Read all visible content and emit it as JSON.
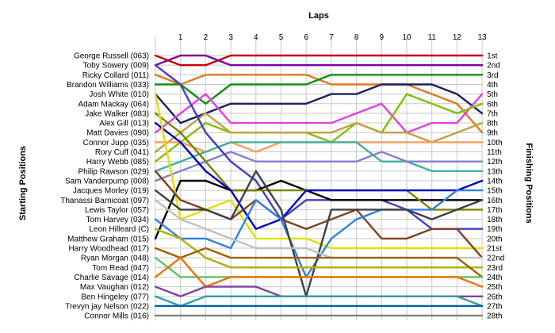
{
  "chart_data": {
    "type": "line",
    "x_title": "Laps",
    "y_left_title": "Starting Positions",
    "y_right_title": "Finishing Positions",
    "grid": true,
    "y_reversed": true,
    "laps": [
      "1",
      "2",
      "3",
      "4",
      "5",
      "6",
      "7",
      "8",
      "9",
      "10",
      "11",
      "12",
      "13"
    ],
    "starting_labels": [
      "George Russell (063)",
      "Toby Sowery (009)",
      "Ricky Collard (011)",
      "Brandon Williams (033)",
      "Josh White (010)",
      "Adam Mackay (064)",
      "Jake Walker (083)",
      "Alex Gill (013)",
      "Matt Davies (090)",
      "Connor Jupp (035)",
      "Rory Cuff (041)",
      "Harry Webb (085)",
      "Philip Rawson (029)",
      "Sam Vanderpump (008)",
      "Jacques Morley (019)",
      "Thanassi Barnicoat (097)",
      "Lewis Taylor (057)",
      "Tom Harvey (034)",
      "Leon Hilleard (C)",
      "Matthew Graham (015)",
      "Harry Woodhead (017)",
      "Ryan Morgan (048)",
      "Tom Read (047)",
      "Charlie Savage (014)",
      "Max Vaughan (012)",
      "Ben Hingeley (077)",
      "Trevyn jay Nelson (022)",
      "Connor Mills (016)"
    ],
    "finishing_labels": [
      "1st",
      "2nd",
      "3rd",
      "4th",
      "5th",
      "6th",
      "7th",
      "8th",
      "9th",
      "10th",
      "11th",
      "12th",
      "13th",
      "14th",
      "15th",
      "16th",
      "17th",
      "18th",
      "19th",
      "20th",
      "21st",
      "22nd",
      "23rd",
      "24th",
      "25th",
      "26th",
      "27th",
      "28th"
    ],
    "series": [
      {
        "color": "#c80000",
        "positions": [
          1,
          2,
          2,
          1,
          1,
          1,
          1,
          1,
          1,
          1,
          1,
          1,
          1,
          1
        ]
      },
      {
        "color": "#8000a0",
        "positions": [
          2,
          1,
          1,
          2,
          2,
          2,
          2,
          2,
          2,
          2,
          2,
          2,
          2,
          2
        ]
      },
      {
        "color": "#e07820",
        "positions": [
          3,
          4,
          3,
          3,
          3,
          3,
          3,
          4,
          4,
          4,
          4,
          5,
          6,
          9
        ]
      },
      {
        "color": "#109010",
        "positions": [
          4,
          4,
          6,
          4,
          4,
          4,
          4,
          3,
          3,
          3,
          3,
          3,
          3,
          3
        ]
      },
      {
        "color": "#1e1e60",
        "positions": [
          5,
          8,
          7,
          6,
          6,
          6,
          6,
          5,
          5,
          4,
          4,
          4,
          5,
          7
        ]
      },
      {
        "color": "#e040e0",
        "positions": [
          9,
          7,
          5,
          8,
          8,
          8,
          8,
          8,
          7,
          6,
          9,
          8,
          8,
          5
        ]
      },
      {
        "color": "#80c000",
        "positions": [
          12,
          10,
          8,
          9,
          9,
          9,
          9,
          10,
          8,
          9,
          5,
          6,
          7,
          6
        ]
      },
      {
        "color": "#c0a040",
        "positions": [
          11,
          9,
          7,
          9,
          9,
          9,
          9,
          9,
          8,
          9,
          9,
          10,
          9,
          8
        ]
      },
      {
        "color": "#f0a060",
        "positions": [
          10,
          10,
          11,
          10,
          11,
          10,
          10,
          10,
          10,
          10,
          10,
          10,
          10,
          10
        ]
      },
      {
        "color": "#40b0a0",
        "positions": [
          13,
          12,
          11,
          10,
          10,
          10,
          10,
          10,
          10,
          12,
          12,
          13,
          13,
          13
        ]
      },
      {
        "color": "#8080d0",
        "positions": [
          14,
          13,
          12,
          11,
          12,
          12,
          12,
          12,
          12,
          11,
          12,
          12,
          12,
          12
        ]
      },
      {
        "color": "#4040c0",
        "positions": [
          2,
          4,
          9,
          12,
          14,
          18,
          16,
          16,
          16,
          16,
          17,
          19,
          19,
          19
        ]
      },
      {
        "color": "#000000",
        "positions": [
          20,
          14,
          14,
          15,
          15,
          14,
          15,
          16,
          16,
          16,
          16,
          16,
          16,
          16
        ]
      },
      {
        "color": "#808000",
        "positions": [
          7,
          9,
          12,
          15,
          15,
          15,
          15,
          15,
          15,
          15,
          15,
          17,
          17,
          17
        ]
      },
      {
        "color": "#0000c0",
        "positions": [
          8,
          10,
          13,
          15,
          19,
          18,
          15,
          15,
          15,
          15,
          15,
          15,
          15,
          14
        ]
      },
      {
        "color": "#e0e000",
        "positions": [
          5,
          18,
          17,
          16,
          20,
          20,
          20,
          21,
          21,
          21,
          21,
          21,
          21,
          21
        ]
      },
      {
        "color": "#804020",
        "positions": [
          13,
          16,
          17,
          18,
          16,
          18,
          19,
          18,
          17,
          20,
          20,
          19,
          19,
          22
        ]
      },
      {
        "color": "#3080e0",
        "positions": [
          18,
          20,
          20,
          21,
          16,
          18,
          24,
          20,
          18,
          17,
          17,
          17,
          15,
          15
        ]
      },
      {
        "color": "#404040",
        "positions": [
          15,
          17,
          17,
          18,
          13,
          17,
          26,
          17,
          17,
          17,
          17,
          18,
          17,
          16
        ]
      },
      {
        "color": "#c0c0c0",
        "positions": [
          16,
          18,
          19,
          20,
          21,
          21,
          21,
          22,
          22,
          22,
          22,
          22,
          22,
          22
        ]
      },
      {
        "color": "#b0b000",
        "positions": [
          19,
          20,
          22,
          23,
          23,
          23,
          23,
          23,
          23,
          23,
          23,
          23,
          23,
          23
        ]
      },
      {
        "color": "#a06000",
        "positions": [
          21,
          22,
          21,
          22,
          22,
          22,
          22,
          22,
          22,
          22,
          22,
          22,
          22,
          24
        ]
      },
      {
        "color": "#60c060",
        "positions": [
          22,
          24,
          24,
          24,
          24,
          24,
          24,
          24,
          24,
          24,
          24,
          24,
          24,
          24
        ]
      },
      {
        "color": "#f07000",
        "positions": [
          24,
          22,
          25,
          24,
          24,
          24,
          24,
          24,
          24,
          24,
          24,
          24,
          24,
          25
        ]
      },
      {
        "color": "#8040a0",
        "positions": [
          25,
          26,
          25,
          25,
          25,
          26,
          26,
          26,
          26,
          26,
          26,
          26,
          26,
          26
        ]
      },
      {
        "color": "#30a0a0",
        "positions": [
          26,
          27,
          26,
          26,
          26,
          26,
          26,
          26,
          26,
          26,
          26,
          26,
          26,
          27
        ]
      },
      {
        "color": "#0060a0",
        "positions": [
          27,
          27,
          27,
          27,
          27,
          27,
          27,
          27,
          27,
          27,
          27,
          27,
          27,
          27
        ]
      },
      {
        "color": "#808080",
        "positions": [
          28,
          28,
          28,
          28,
          28,
          28,
          28,
          28,
          28,
          28,
          28,
          28,
          28,
          28
        ]
      }
    ]
  }
}
